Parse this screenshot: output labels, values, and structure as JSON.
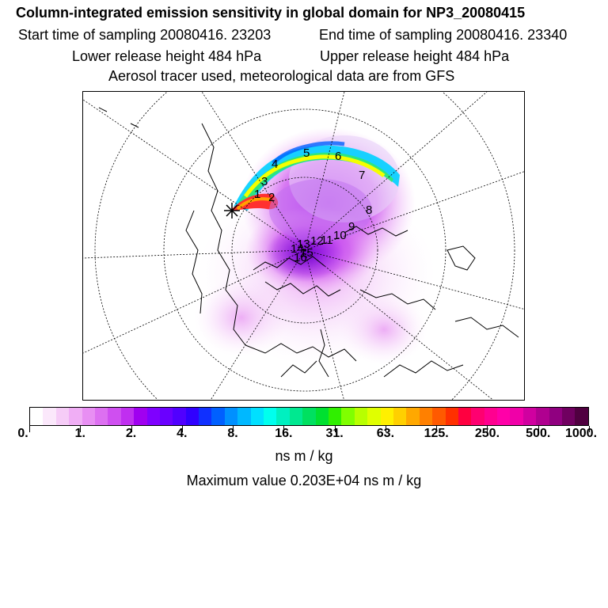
{
  "header": {
    "title": "Column-integrated emission sensitivity in global domain for NP3_20080415",
    "start_label": "Start time of sampling 20080416. 23203",
    "end_label": "End time of sampling 20080416. 23340",
    "lower_label": "Lower release height  484 hPa",
    "upper_label": "Upper release height  484 hPa",
    "tracer_label": "Aerosol tracer used, meteorological data are from GFS"
  },
  "map": {
    "track_labels": [
      "1",
      "2",
      "3",
      "4",
      "5",
      "6",
      "7",
      "8",
      "9",
      "10",
      "11",
      "12",
      "13",
      "14",
      "15",
      "16"
    ]
  },
  "colorbar": {
    "colors": [
      "#ffffff",
      "#fbe8fb",
      "#f6ccf7",
      "#f0aef5",
      "#e88ff3",
      "#dd70f1",
      "#cf4ff0",
      "#c02ff0",
      "#a000f0",
      "#7f00ff",
      "#6a00ff",
      "#5000ff",
      "#3000ff",
      "#1030ff",
      "#0060ff",
      "#0090ff",
      "#00b8ff",
      "#00e0ff",
      "#00ffee",
      "#00f0c0",
      "#00e890",
      "#00e060",
      "#00e030",
      "#30ef00",
      "#80ff00",
      "#b8ff00",
      "#e0ff00",
      "#fff000",
      "#ffd000",
      "#ffa800",
      "#ff8000",
      "#ff5a00",
      "#ff3000",
      "#ff0040",
      "#ff0070",
      "#ff0090",
      "#ff00a8",
      "#f000a8",
      "#d000a0",
      "#b00090",
      "#900080",
      "#700060",
      "#500040"
    ],
    "tick_labels": [
      "0.",
      "1.",
      "2.",
      "4.",
      "8.",
      "16.",
      "31.",
      "63.",
      "125.",
      "250.",
      "500.",
      "1000."
    ],
    "unit": "ns m / kg"
  },
  "max_value_label": "Maximum value  0.203E+04 ns m / kg"
}
